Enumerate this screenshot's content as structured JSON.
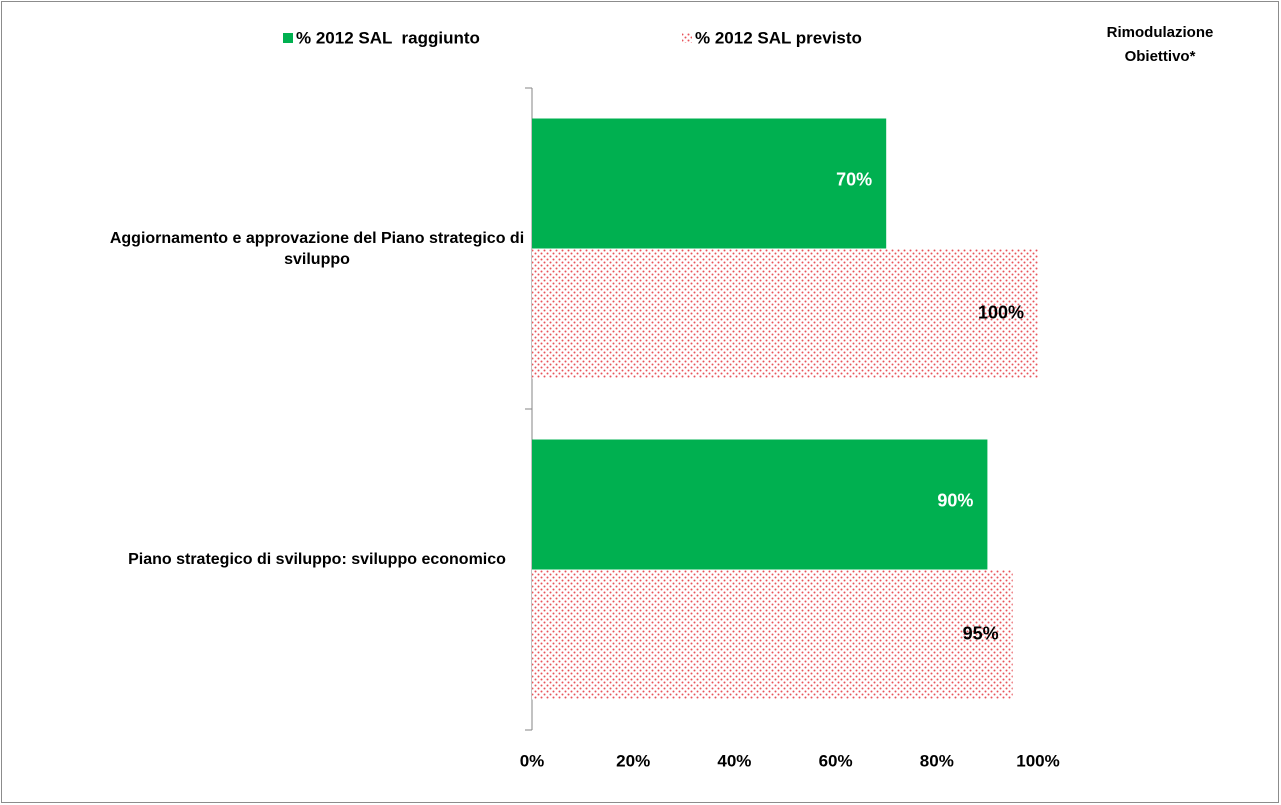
{
  "chart_data": {
    "type": "hbar",
    "annotation": [
      "Rimodulazione",
      "Obiettivo*"
    ],
    "categories": [
      "Aggiornamento e approvazione del Piano strategico di sviluppo",
      "Piano strategico di sviluppo: sviluppo economico"
    ],
    "series": [
      {
        "name": "% 2012 SAL  raggiunto",
        "color": "#00b050",
        "values": [
          70,
          90
        ],
        "value_labels": [
          "70%",
          "90%"
        ]
      },
      {
        "name": "% 2012 SAL previsto",
        "color": "#e8545a",
        "pattern": "dots",
        "values": [
          100,
          95
        ],
        "value_labels": [
          "100%",
          "95%"
        ]
      }
    ],
    "xlim": [
      0,
      100
    ],
    "xticks": [
      {
        "value": 0,
        "label": "0%"
      },
      {
        "value": 20,
        "label": "20%"
      },
      {
        "value": 40,
        "label": "40%"
      },
      {
        "value": 60,
        "label": "60%"
      },
      {
        "value": 80,
        "label": "80%"
      },
      {
        "value": 100,
        "label": "100%"
      }
    ],
    "legend": "top"
  }
}
